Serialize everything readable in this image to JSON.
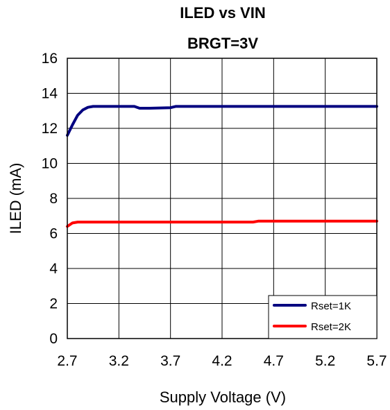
{
  "chart_data": {
    "type": "line",
    "title": "ILED vs VIN",
    "subtitle": "BRGT=3V",
    "xlabel": "Supply Voltage (V)",
    "ylabel": "ILED (mA)",
    "xlim": [
      2.7,
      5.7
    ],
    "ylim": [
      0,
      16
    ],
    "x_ticks": [
      "2.7",
      "3.2",
      "3.7",
      "4.2",
      "4.7",
      "5.2",
      "5.7"
    ],
    "y_ticks": [
      "0",
      "2",
      "4",
      "6",
      "8",
      "10",
      "12",
      "14",
      "16"
    ],
    "grid": true,
    "legend_position": "bottom-right",
    "series": [
      {
        "name": "Rset=1K",
        "color": "#000080",
        "x": [
          2.7,
          2.75,
          2.8,
          2.85,
          2.9,
          2.95,
          3.0,
          3.2,
          3.35,
          3.4,
          3.5,
          3.7,
          3.75,
          4.0,
          4.5,
          5.0,
          5.5,
          5.7
        ],
        "y": [
          11.6,
          12.2,
          12.75,
          13.05,
          13.2,
          13.25,
          13.25,
          13.25,
          13.25,
          13.15,
          13.15,
          13.18,
          13.25,
          13.25,
          13.25,
          13.25,
          13.25,
          13.25
        ]
      },
      {
        "name": "Rset=2K",
        "color": "#ff0000",
        "x": [
          2.7,
          2.75,
          2.8,
          3.0,
          3.5,
          4.0,
          4.5,
          4.55,
          5.0,
          5.5,
          5.7
        ],
        "y": [
          6.4,
          6.6,
          6.65,
          6.65,
          6.65,
          6.65,
          6.65,
          6.7,
          6.7,
          6.7,
          6.7
        ]
      }
    ]
  }
}
